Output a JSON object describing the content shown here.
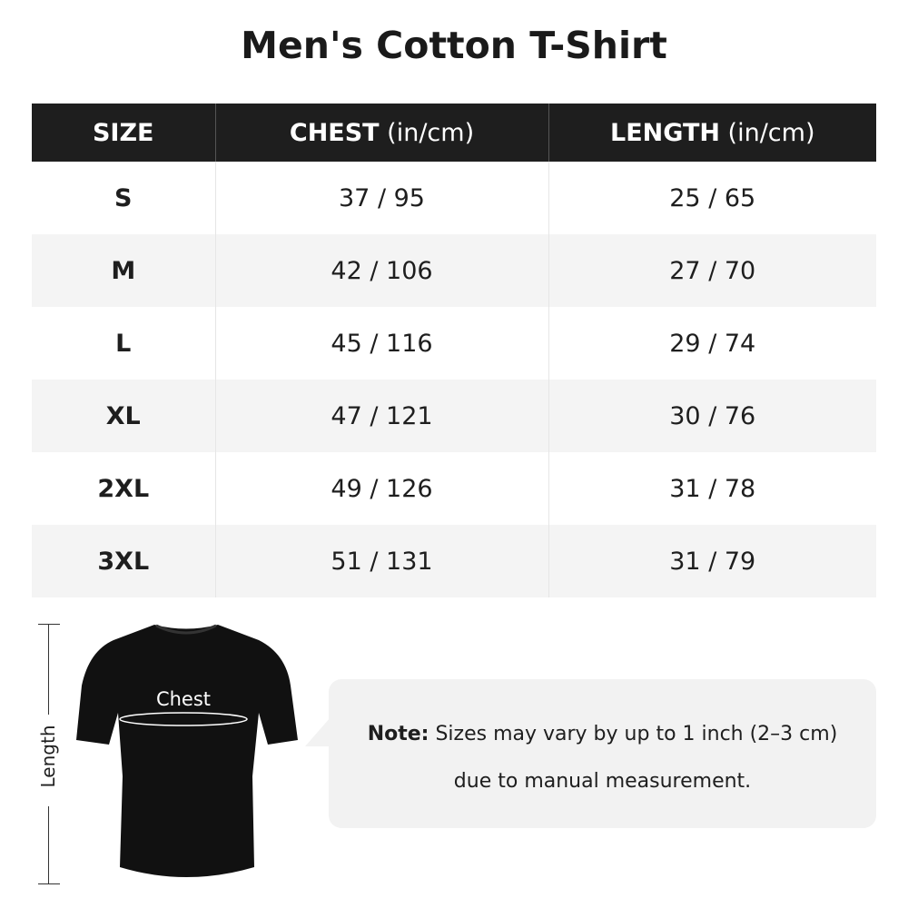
{
  "title": "Men's Cotton T-Shirt",
  "table": {
    "headers": [
      {
        "main": "SIZE",
        "unit": ""
      },
      {
        "main": "CHEST",
        "unit": " (in/cm)"
      },
      {
        "main": "LENGTH",
        "unit": " (in/cm)"
      }
    ],
    "rows": [
      [
        "S",
        "37 / 95",
        "25 / 65"
      ],
      [
        "M",
        "42 / 106",
        "27 / 70"
      ],
      [
        "L",
        "45 / 116",
        "29 / 74"
      ],
      [
        "XL",
        "47 / 121",
        "30 / 76"
      ],
      [
        "2XL",
        "49 / 126",
        "31 / 78"
      ],
      [
        "3XL",
        "51 / 131",
        "31 / 79"
      ]
    ]
  },
  "diagram": {
    "length_label": "Length",
    "chest_label": "Chest",
    "shirt_color": "#111111"
  },
  "note": {
    "label": "Note:",
    "line1": " Sizes may vary by up to 1 inch (2–3 cm)",
    "line2": "due to manual measurement."
  }
}
